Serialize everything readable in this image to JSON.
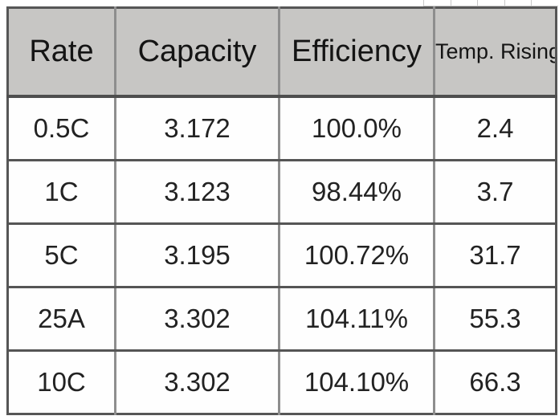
{
  "colors": {
    "header_bg": "#c7c6c4",
    "border_horizontal": "#4e4e4e",
    "border_vertical": "#8e8e8e",
    "text": "#1e1e1e",
    "row_bg": "#fefefe",
    "page_bg": "#ffffff",
    "faint_gridline": "#c9c9c9"
  },
  "table": {
    "columns": [
      {
        "label": "Rate"
      },
      {
        "label": "Capacity"
      },
      {
        "label": "Efficiency"
      },
      {
        "label": "Temp. Rising"
      }
    ],
    "rows": [
      [
        "0.5C",
        "3.172",
        "100.0%",
        "2.4"
      ],
      [
        "1C",
        "3.123",
        "98.44%",
        "3.7"
      ],
      [
        "5C",
        "3.195",
        "100.72%",
        "31.7"
      ],
      [
        "25A",
        "3.302",
        "104.11%",
        "55.3"
      ],
      [
        "10C",
        "3.302",
        "104.10%",
        "66.3"
      ]
    ]
  },
  "chart_data": {
    "type": "table",
    "title": "",
    "columns": [
      "Rate",
      "Capacity",
      "Efficiency",
      "Temp. Rising"
    ],
    "rows": [
      {
        "rate": "0.5C",
        "capacity": 3.172,
        "efficiency_pct": 100.0,
        "temp_rising": 2.4
      },
      {
        "rate": "1C",
        "capacity": 3.123,
        "efficiency_pct": 98.44,
        "temp_rising": 3.7
      },
      {
        "rate": "5C",
        "capacity": 3.195,
        "efficiency_pct": 100.72,
        "temp_rising": 31.7
      },
      {
        "rate": "25A",
        "capacity": 3.302,
        "efficiency_pct": 104.11,
        "temp_rising": 55.3
      },
      {
        "rate": "10C",
        "capacity": 3.302,
        "efficiency_pct": 104.1,
        "temp_rising": 66.3
      }
    ]
  }
}
